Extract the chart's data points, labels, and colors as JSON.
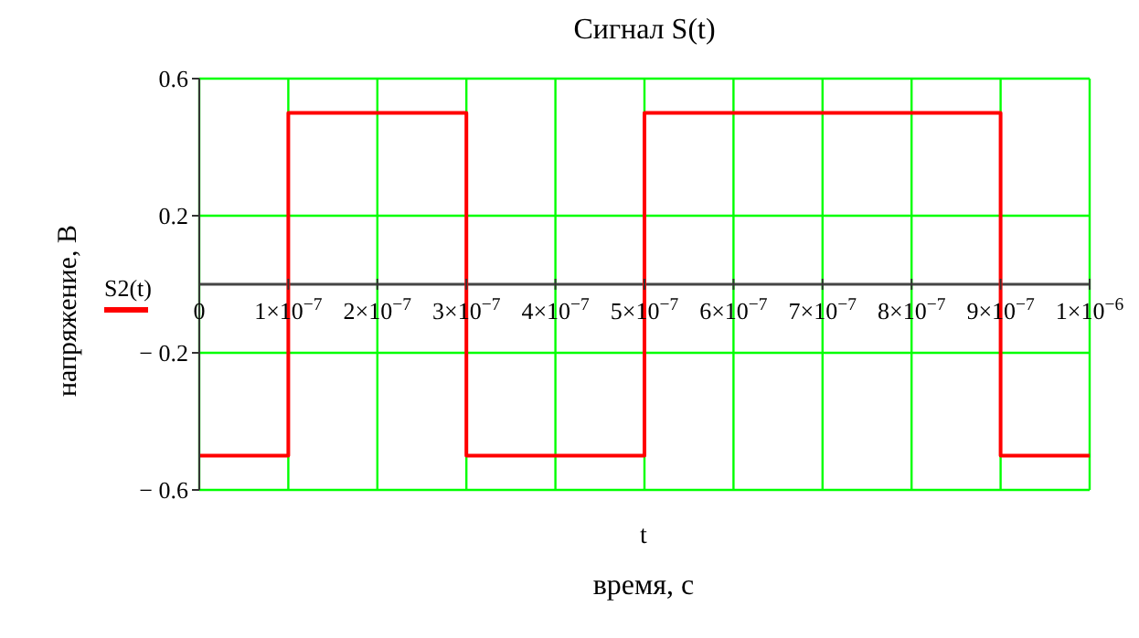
{
  "chart_data": {
    "type": "step",
    "title": "Сигнал S(t)",
    "xlabel": "время, с",
    "ylabel": "напряжение, В",
    "annotations": [
      "t"
    ],
    "x": [
      0,
      1e-07,
      3e-07,
      5e-07,
      9e-07,
      1e-06
    ],
    "series": [
      {
        "name": "S2(t)",
        "color": "#ff0000",
        "values": [
          -0.5,
          0.5,
          -0.5,
          0.5,
          -0.5,
          -0.5
        ]
      }
    ],
    "xlim": [
      0,
      1e-06
    ],
    "xticks": [
      0,
      {
        "value": 1e-07,
        "label": "1×10$^{−7}$"
      },
      {
        "value": 2e-07,
        "label": "2×10$^{−7}$"
      },
      {
        "value": 3e-07,
        "label": "3×10$^{−7}$"
      },
      {
        "value": 4e-07,
        "label": "4×10$^{−7}$"
      },
      {
        "value": 5e-07,
        "label": "5×10$^{−7}$"
      },
      {
        "value": 6e-07,
        "label": "6×10$^{−7}$"
      },
      {
        "value": 7e-07,
        "label": "7×10$^{−7}$"
      },
      {
        "value": 8e-07,
        "label": "8×10$^{−7}$"
      },
      {
        "value": 9e-07,
        "label": "9×10$^{−7}$"
      },
      {
        "value": 1e-06,
        "label": "1×10$^{−6}$"
      }
    ],
    "ylim": [
      -0.6,
      0.6
    ],
    "yticks": [
      {
        "value": -0.6,
        "label": "− 0.6"
      },
      {
        "value": -0.2,
        "label": "− 0.2"
      },
      {
        "value": 0.2,
        "label": "0.2"
      },
      {
        "value": 0.6,
        "label": "0.6"
      }
    ],
    "grid": true,
    "legend": "left",
    "marker": "none",
    "line_style": "solid"
  }
}
